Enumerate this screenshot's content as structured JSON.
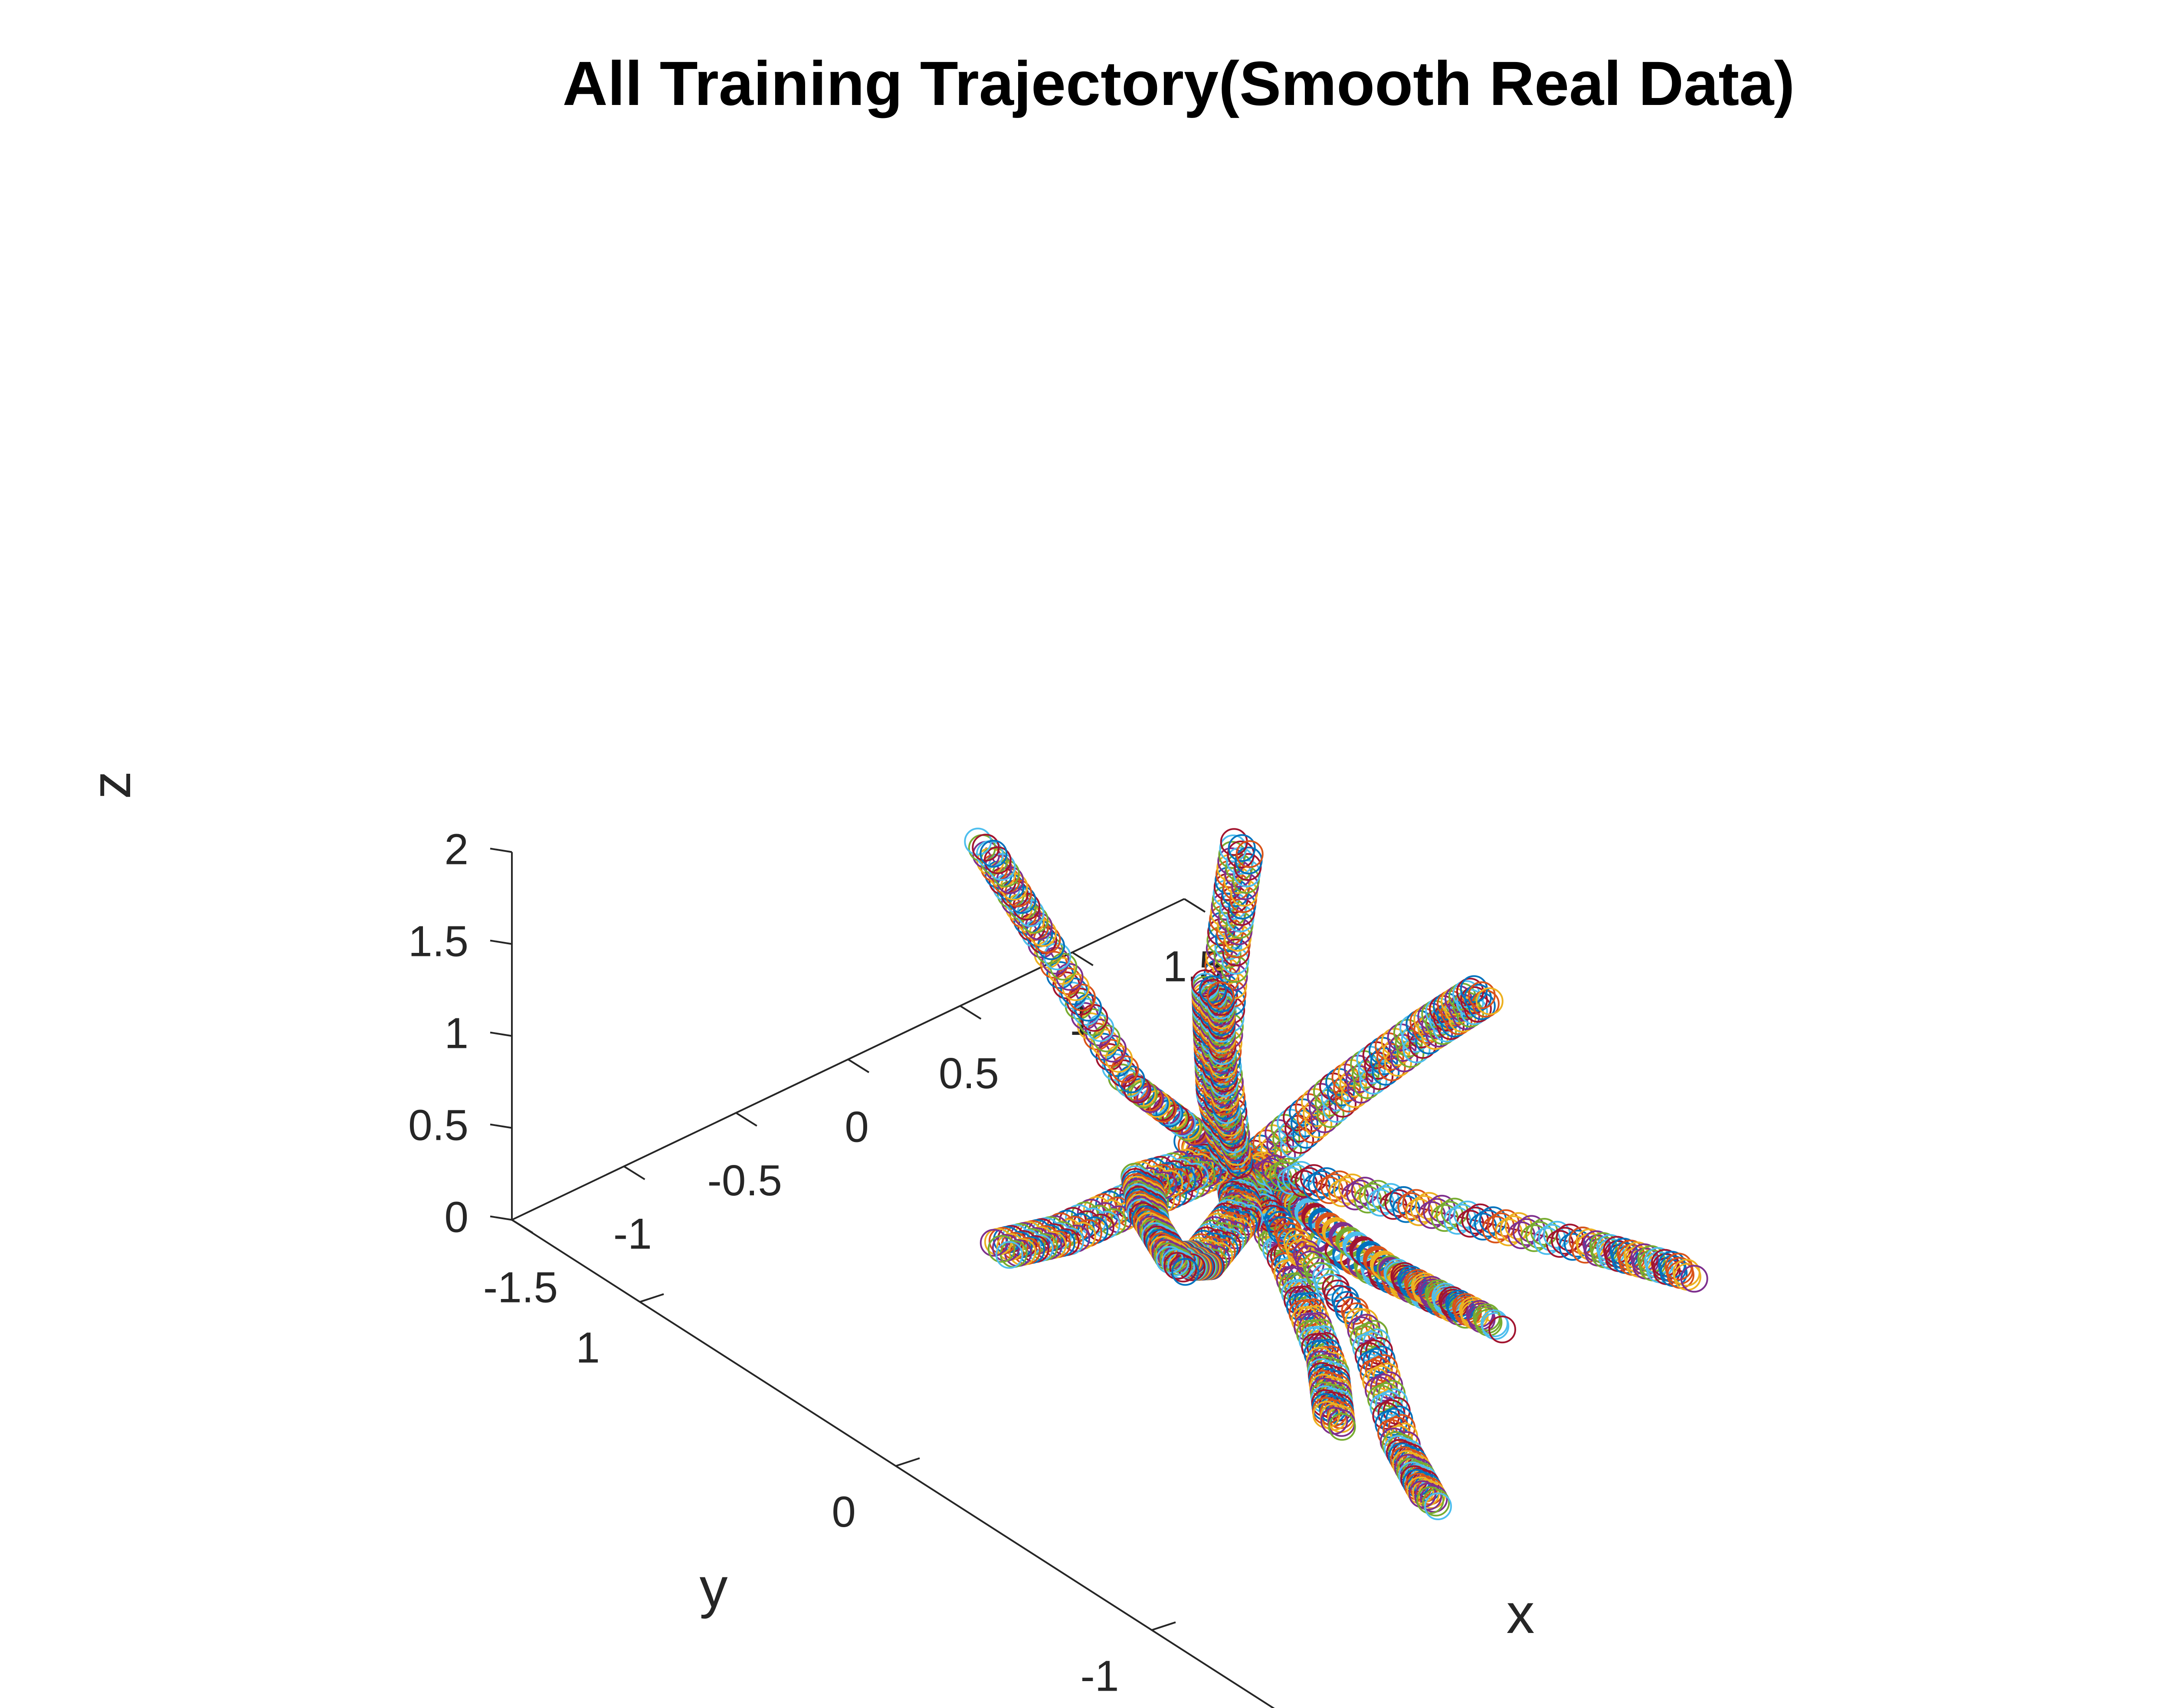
{
  "chart_data": {
    "type": "line",
    "subtype": "3d-scatter-line",
    "title": "All Training Trajectory(Smooth Real Data)",
    "xlabel": "x",
    "ylabel": "y",
    "zlabel": "z",
    "xlim": [
      -1.5,
      1.5
    ],
    "ylim": [
      -1.5,
      1.5
    ],
    "zlim": [
      0,
      2
    ],
    "xticks": [
      "-1.5",
      "-1",
      "-0.5",
      "0",
      "0.5",
      "1",
      "1.5"
    ],
    "yticks": [
      "-1",
      "0",
      "1"
    ],
    "zticks": [
      "0",
      "0.5",
      "1",
      "1.5",
      "2"
    ],
    "marker": "circle",
    "grid": false,
    "legend": "none",
    "colors": [
      "#0072bd",
      "#d95319",
      "#edb120",
      "#7e2f8e",
      "#77ac30",
      "#4dbeee",
      "#a2142f"
    ],
    "series": [
      {
        "name": "",
        "points": [
          [
            -0.05,
            0.1,
            0.8
          ],
          [
            0.1,
            0.0,
            0.5
          ],
          [
            0.35,
            -0.2,
            0.2
          ],
          [
            0.55,
            -0.4,
            0.02
          ]
        ]
      },
      {
        "name": "",
        "points": [
          [
            0.0,
            0.0,
            0.8
          ],
          [
            -0.15,
            0.2,
            0.5
          ],
          [
            -0.3,
            0.4,
            0.2
          ],
          [
            -0.4,
            0.55,
            0.05
          ]
        ]
      },
      {
        "name": "",
        "points": [
          [
            0.05,
            0.0,
            0.8
          ],
          [
            0.2,
            -0.1,
            0.5
          ],
          [
            0.4,
            -0.3,
            0.2
          ],
          [
            0.6,
            -0.5,
            0.0
          ]
        ]
      },
      {
        "name": "",
        "points": [
          [
            0.0,
            0.05,
            0.8
          ],
          [
            0.0,
            0.4,
            0.85
          ],
          [
            0.3,
            1.0,
            0.92
          ],
          [
            0.5,
            1.4,
            0.95
          ]
        ]
      },
      {
        "name": "",
        "points": [
          [
            0.0,
            0.0,
            0.8
          ],
          [
            0.4,
            0.4,
            0.78
          ],
          [
            0.9,
            0.8,
            0.76
          ],
          [
            1.3,
            1.1,
            0.75
          ]
        ]
      },
      {
        "name": "",
        "points": [
          [
            0.05,
            -0.05,
            0.78
          ],
          [
            0.6,
            0.1,
            0.72
          ],
          [
            1.1,
            0.2,
            0.68
          ],
          [
            1.4,
            0.25,
            0.65
          ]
        ]
      },
      {
        "name": "",
        "points": [
          [
            0.0,
            0.0,
            0.78
          ],
          [
            0.4,
            -0.35,
            0.62
          ],
          [
            0.8,
            -0.7,
            0.48
          ],
          [
            1.0,
            -0.9,
            0.4
          ]
        ]
      },
      {
        "name": "",
        "points": [
          [
            0.0,
            0.0,
            0.8
          ],
          [
            -0.3,
            -0.5,
            0.8
          ],
          [
            -0.6,
            -0.9,
            0.82
          ],
          [
            -0.8,
            -1.1,
            0.82
          ]
        ]
      },
      {
        "name": "",
        "points": [
          [
            0.0,
            0.0,
            0.75
          ],
          [
            -0.2,
            -0.7,
            0.62
          ],
          [
            -0.5,
            -1.1,
            0.5
          ],
          [
            -0.6,
            -1.3,
            0.45
          ]
        ]
      },
      {
        "name": "",
        "points": [
          [
            0.0,
            0.0,
            0.8
          ],
          [
            -0.3,
            -0.3,
            0.95
          ],
          [
            -0.7,
            -0.5,
            1.1
          ],
          [
            -0.9,
            -0.6,
            1.3
          ]
        ]
      },
      {
        "name": "",
        "points": [
          [
            0.0,
            0.0,
            0.8
          ],
          [
            -0.4,
            0.0,
            0.9
          ],
          [
            -0.6,
            -0.2,
            1.0
          ],
          [
            -0.7,
            -0.4,
            0.98
          ]
        ]
      },
      {
        "name": "",
        "points": [
          [
            0.0,
            0.0,
            0.8
          ],
          [
            0.05,
            0.1,
            1.0
          ],
          [
            0.15,
            0.2,
            1.2
          ],
          [
            0.2,
            0.25,
            1.38
          ]
        ]
      }
    ]
  }
}
